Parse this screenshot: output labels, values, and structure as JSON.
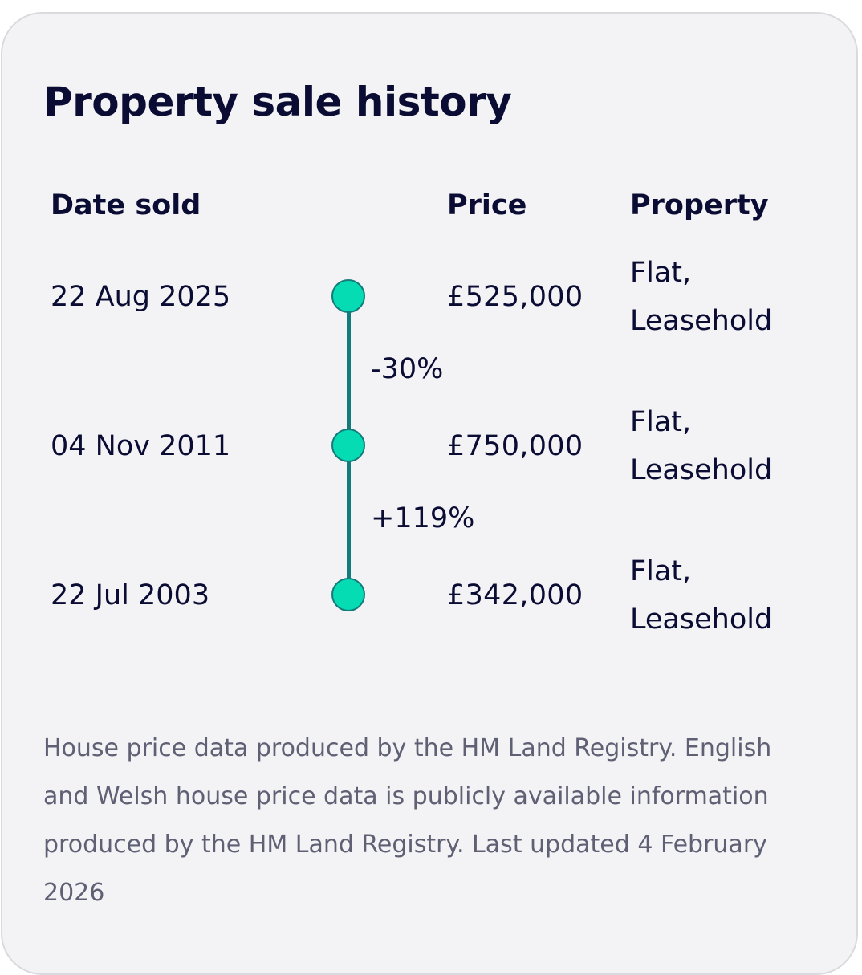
{
  "card": {
    "title": "Property sale history",
    "columns": {
      "date": "Date sold",
      "price": "Price",
      "property": "Property"
    },
    "sales": [
      {
        "date": "22 Aug 2025",
        "price": "£525,000",
        "type": "Flat,",
        "tenure": "Leasehold"
      },
      {
        "date": "04 Nov 2011",
        "price": "£750,000",
        "type": "Flat,",
        "tenure": "Leasehold"
      },
      {
        "date": "22 Jul 2003",
        "price": "£342,000",
        "type": "Flat,",
        "tenure": "Leasehold"
      }
    ],
    "changes": [
      "-30%",
      "+119%"
    ],
    "footnote": "House price data produced by the HM Land Registry. English and Welsh house price data is publicly available information produced by the HM Land Registry. Last updated 4 February 2026"
  },
  "colors": {
    "card_background": "#f3f3f6",
    "text_primary": "#0b0c33",
    "text_muted": "#5f6074",
    "timeline_line": "#137b7b",
    "timeline_dot": "#05dcb4"
  }
}
